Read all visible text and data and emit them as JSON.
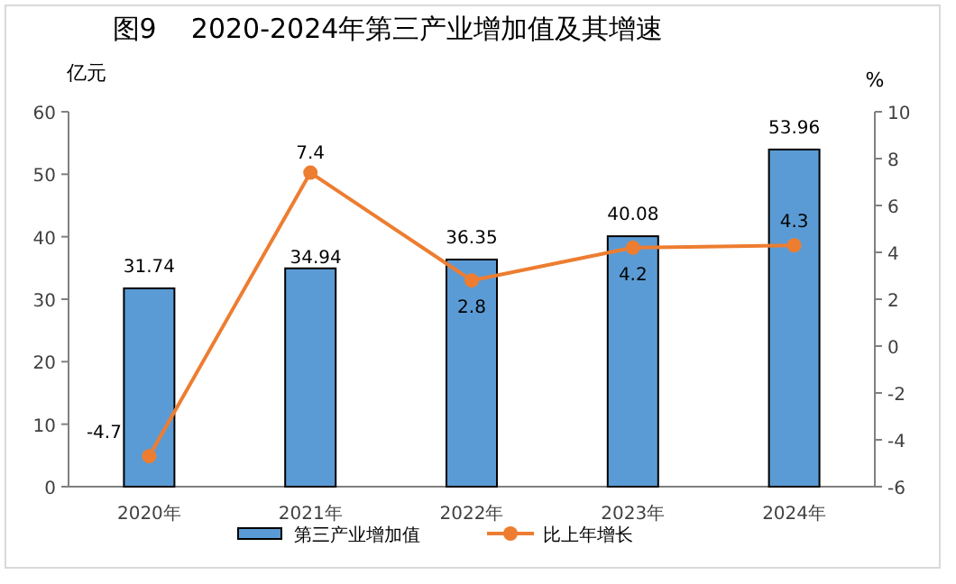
{
  "chart_data": {
    "type": "bar",
    "title": "图9    2020-2024年第三产业增加值及其增速",
    "ylabel": "亿元",
    "y2label": "%",
    "categories": [
      "2020年",
      "2021年",
      "2022年",
      "2023年",
      "2024年"
    ],
    "series": [
      {
        "name": "第三产业增加值",
        "color": "#5b9bd5",
        "values": [
          31.74,
          34.94,
          36.35,
          40.08,
          53.96
        ]
      },
      {
        "name": "比上年增长",
        "type": "line",
        "axis": "y2",
        "color": "#ed7d31",
        "values": [
          -4.7,
          7.4,
          2.8,
          4.2,
          4.3
        ]
      }
    ],
    "marker": "circle",
    "ylim": [
      0,
      60
    ],
    "yticks": [
      0,
      10,
      20,
      30,
      40,
      50,
      60
    ],
    "y2lim": [
      -6,
      10
    ],
    "y2ticks": [
      -6,
      -4,
      -2,
      0,
      2,
      4,
      6,
      8,
      10
    ],
    "data_labels": true,
    "legend": "bottom",
    "grid": false
  }
}
